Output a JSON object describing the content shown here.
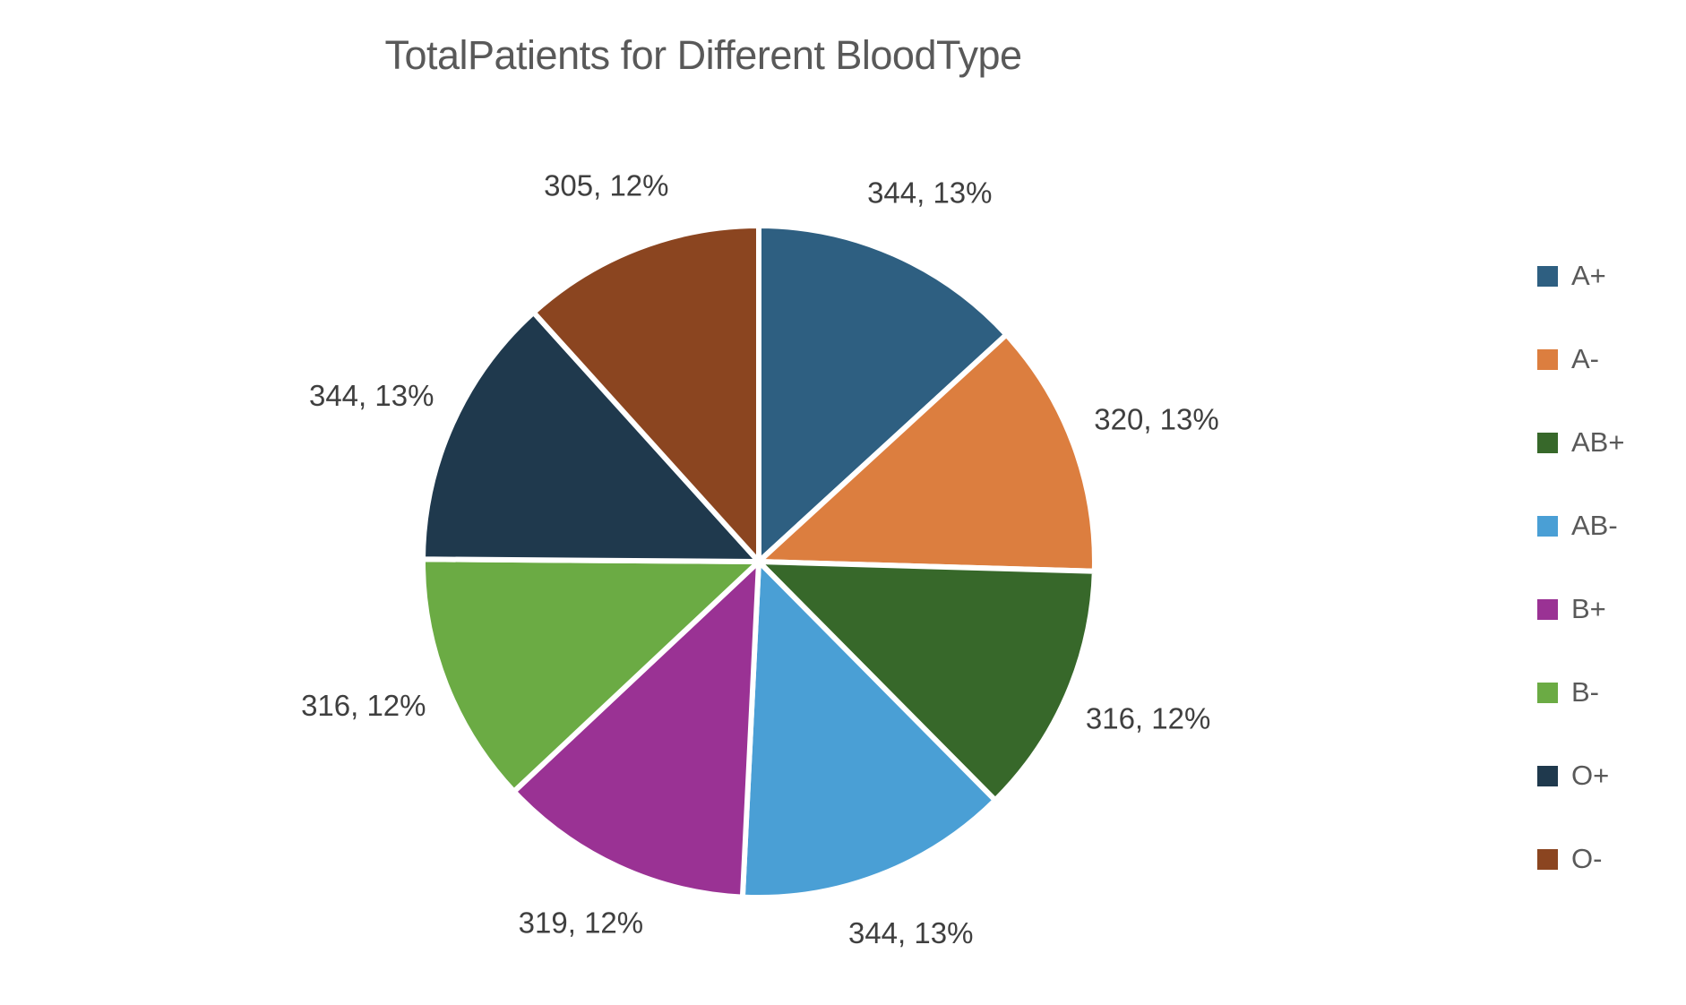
{
  "chart_data": {
    "type": "pie",
    "title": "TotalPatients for Different BloodType",
    "legend_position": "right",
    "label_format": "value, percent%",
    "background_color": "#ffffff",
    "title_color": "#595959",
    "data_label_color": "#3f3f3f",
    "slices": [
      {
        "label": "A+",
        "value": 344,
        "percent": 13,
        "color": "#2E5F81"
      },
      {
        "label": "A-",
        "value": 320,
        "percent": 13,
        "color": "#DC7E3F"
      },
      {
        "label": "AB+",
        "value": 316,
        "percent": 12,
        "color": "#37682A"
      },
      {
        "label": "AB-",
        "value": 344,
        "percent": 13,
        "color": "#4A9FD5"
      },
      {
        "label": "B+",
        "value": 319,
        "percent": 12,
        "color": "#9A3294"
      },
      {
        "label": "B-",
        "value": 316,
        "percent": 12,
        "color": "#6BAB44"
      },
      {
        "label": "O+",
        "value": 344,
        "percent": 13,
        "color": "#1F394D"
      },
      {
        "label": "O-",
        "value": 305,
        "percent": 12,
        "color": "#8B4520"
      }
    ]
  }
}
